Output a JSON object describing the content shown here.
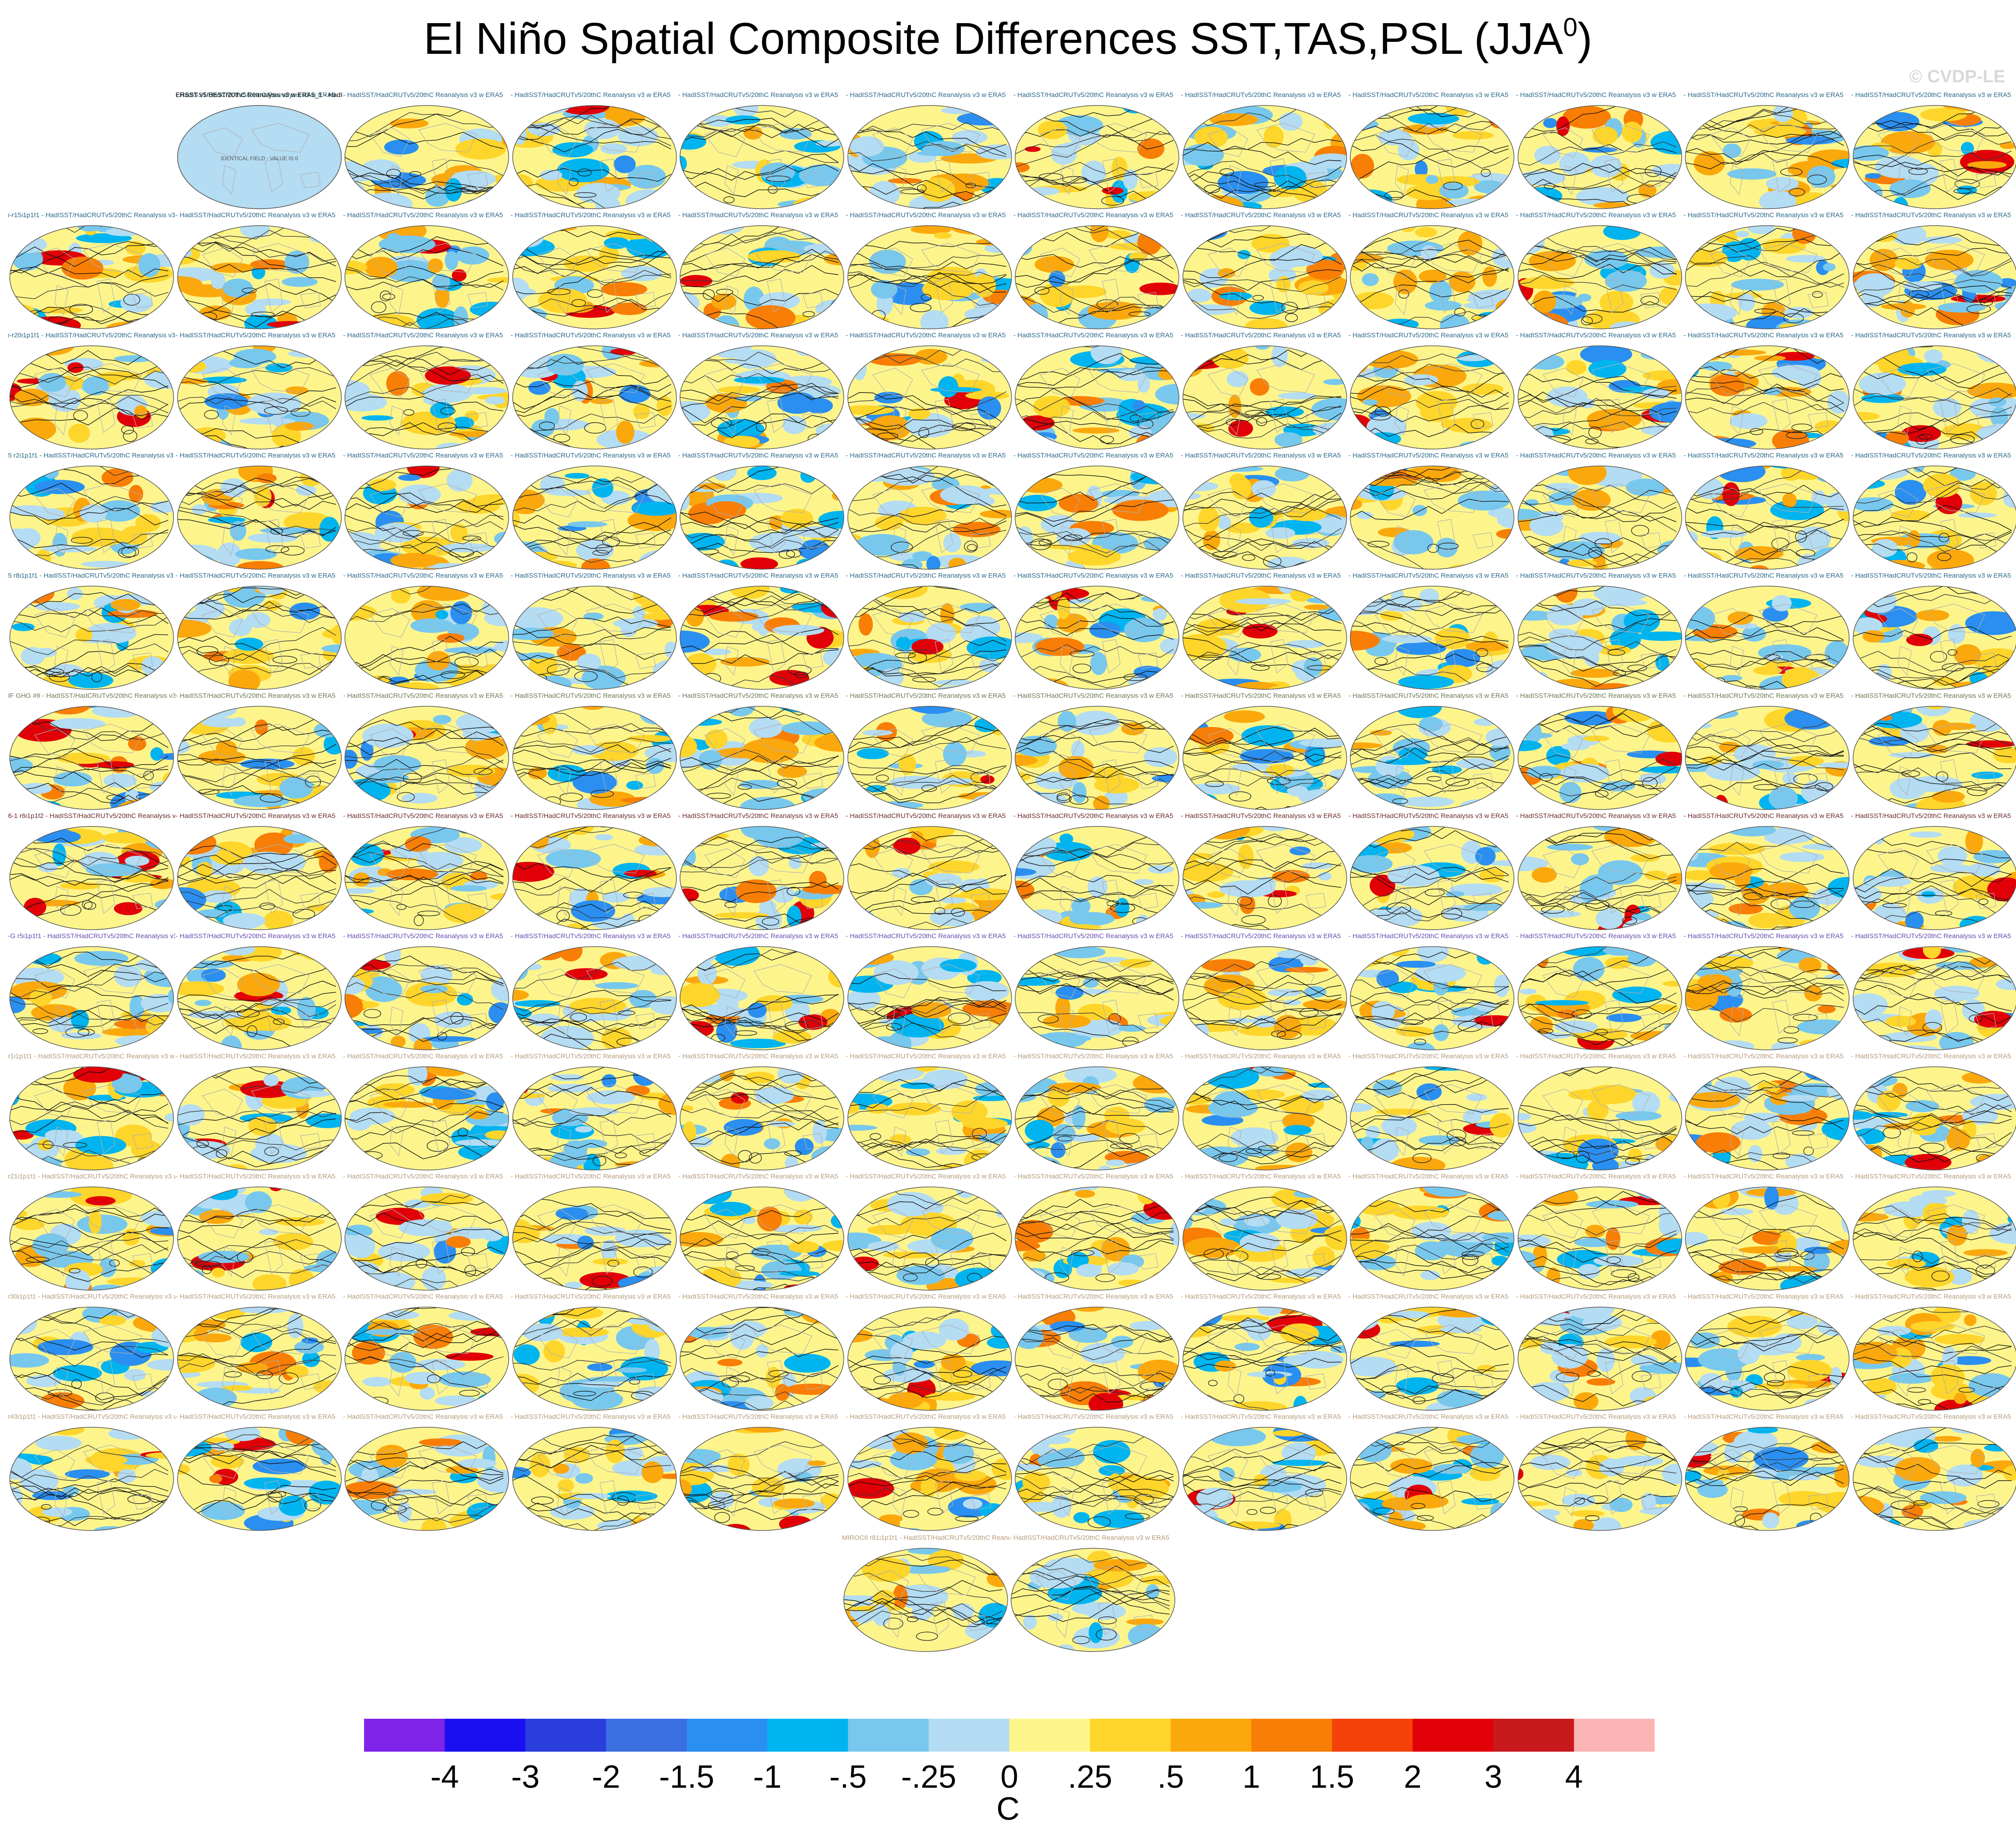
{
  "title": "El Niño Spatial Composite Differences SST,TAS,PSL (JJA",
  "title_superscript": "0",
  "title_close": ")",
  "watermark": "© CVDP-LE",
  "chart_data": {
    "type": "heatmap",
    "title": "El Niño Spatial Composite Differences SST,TAS,PSL (JJA0)",
    "description_panels": "Multi-panel grid of global maps; each panel is a model/member composite difference vs observations (filled SST/TAS, black PSL contours).",
    "rows": 12,
    "columns": 12,
    "extra_row_panels": 2,
    "first_panel_label": "ERSST v5/BEST/20thC Reanalysis v3 w ERA5_1 - HadISST/HadCRUTv5/20thC Reanalysis v3 w ERA5",
    "first_panel_note": "IDENTICAL FIELD - VALUE IS 0",
    "panel_label_template": "- HadISST/HadCRUTv5/20thC Reanalysis v3 w ERA5",
    "row_label_prefixes": [
      "",
      "i-r15i1p1f1",
      "i-r20i1p1f1",
      "5 r2i1p1f1",
      "5 r8i1p1f1",
      "IF GHG #9",
      "6-1 r6i1p1f2",
      "-G r5i1p1f1",
      "r1i1p1f1",
      "r21i1p1f1",
      "r30i1p1f1",
      "r43i1p1f1",
      "MIROC6 r81i1p1f1"
    ],
    "colorbar": {
      "labels": [
        "-4",
        "-3",
        "-2",
        "-1.5",
        "-1",
        "-.5",
        "-.25",
        "0",
        ".25",
        ".5",
        "1",
        "1.5",
        "2",
        "3",
        "4"
      ],
      "colors": [
        "#7f24e8",
        "#1a0ff0",
        "#2a3edc",
        "#3a6fe0",
        "#2a8ff0",
        "#00b4f0",
        "#78c8ee",
        "#b4dcf2",
        "#fdf58c",
        "#fed52a",
        "#fba80c",
        "#f87e06",
        "#f4420a",
        "#e10008",
        "#c81a1c",
        "#fbb4b4"
      ],
      "unit": "C"
    }
  }
}
